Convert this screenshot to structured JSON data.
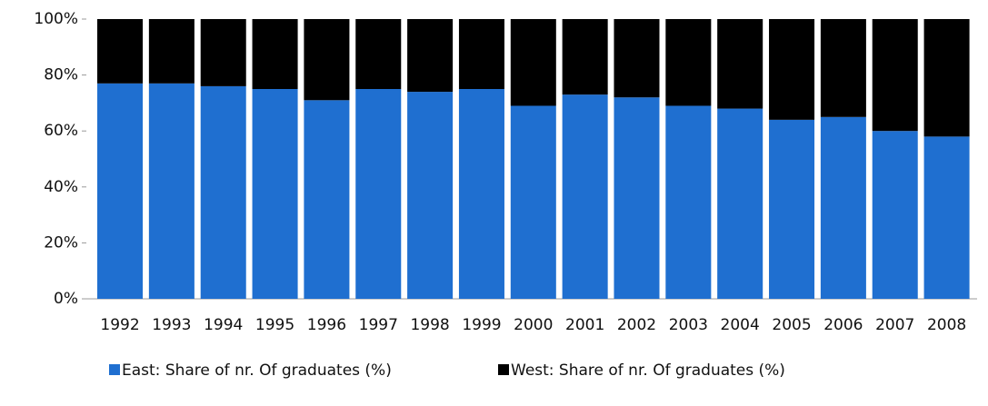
{
  "chart_data": {
    "type": "stacked_bar",
    "categories": [
      "1992",
      "1993",
      "1994",
      "1995",
      "1996",
      "1997",
      "1998",
      "1999",
      "2000",
      "2001",
      "2002",
      "2003",
      "2004",
      "2005",
      "2006",
      "2007",
      "2008"
    ],
    "series": [
      {
        "name": "East: Share of nr. Of graduates (%)",
        "color": "#1f6fd0",
        "values": [
          77,
          77,
          76,
          75,
          71,
          75,
          74,
          75,
          69,
          73,
          72,
          69,
          68,
          64,
          65,
          60,
          58
        ]
      },
      {
        "name": "West: Share of nr. Of graduates (%)",
        "color": "#000000",
        "values": [
          23,
          23,
          24,
          25,
          29,
          25,
          26,
          25,
          31,
          27,
          28,
          31,
          32,
          36,
          35,
          40,
          42
        ]
      }
    ],
    "ylim": [
      0,
      100
    ],
    "yticks": [
      {
        "value": 0,
        "label": "0%"
      },
      {
        "value": 20,
        "label": "20%"
      },
      {
        "value": 40,
        "label": "40%"
      },
      {
        "value": 60,
        "label": "60%"
      },
      {
        "value": 80,
        "label": "80%"
      },
      {
        "value": 100,
        "label": "100%"
      }
    ],
    "legend": "bottom"
  }
}
